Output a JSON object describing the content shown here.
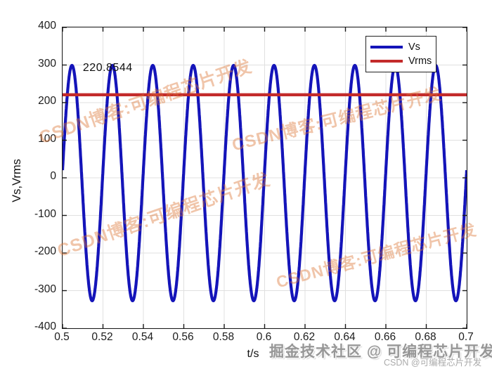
{
  "figure": {
    "background": "#ffffff"
  },
  "chart_data": {
    "type": "line",
    "title": "",
    "xlabel": "t/s",
    "ylabel": "Vs,Vrms",
    "xlim": [
      0.5,
      0.7
    ],
    "ylim": [
      -400,
      400
    ],
    "grid": true,
    "grid_color": "#e0e0e0",
    "axis_color": "#1a1a1a",
    "x_ticks": [
      0.5,
      0.52,
      0.54,
      0.56,
      0.58,
      0.6,
      0.62,
      0.64,
      0.66,
      0.68,
      0.7
    ],
    "x_tick_labels": [
      "0.5",
      "0.52",
      "0.54",
      "0.56",
      "0.58",
      "0.6",
      "0.62",
      "0.64",
      "0.66",
      "0.68",
      "0.7"
    ],
    "y_ticks": [
      400,
      300,
      200,
      100,
      0,
      -100,
      -200,
      -300,
      -400
    ],
    "y_tick_labels": [
      "400",
      "300",
      "200",
      "100",
      "0",
      "-100",
      "-200",
      "-300",
      "-400"
    ],
    "legend": {
      "position": "top-right",
      "entries": [
        "Vs",
        "Vrms"
      ]
    },
    "annotation": {
      "text": "220.8544",
      "x": 0.5104,
      "y": 287
    },
    "series": [
      {
        "name": "Vs",
        "type": "sine",
        "color": "#1414b9",
        "amplitude": 313,
        "offset": -14,
        "frequency_hz": 50,
        "phase_rad": 0.11
      },
      {
        "name": "Vrms",
        "type": "hline",
        "color": "#c32b2b",
        "value": 220.8544
      }
    ]
  },
  "watermarks": {
    "diagonal_text": "CSDN博客:可编程芯片开发",
    "diagonal_color": "#dd7636",
    "bottom_main": "掘金技术社区 @ 可编程芯片开发",
    "bottom_small": "CSDN @可编程芯片开发"
  }
}
